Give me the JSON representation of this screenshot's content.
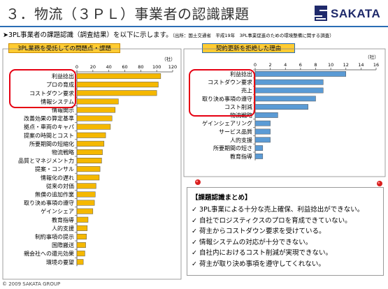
{
  "header": {
    "title": "３．物流（３ＰＬ）事業者の認識課題",
    "logo_text": "SAKATA"
  },
  "subtitle": {
    "text": "➤3PL事業者の課題認識（調査結果）を以下に示します。",
    "source": "（出所：国土交通省　平成19年　3PL事業促進のための環境整備に関する調査）"
  },
  "colors": {
    "left_bar": "#f5b800",
    "right_bar": "#5b9bd5",
    "highlight": "#e60012",
    "accent": "#2a6db5"
  },
  "chart_data": [
    {
      "type": "bar",
      "orientation": "horizontal",
      "title": "3PL業務を受託しての問題点・課題",
      "unit": "（社）",
      "xlim": [
        0,
        120
      ],
      "ticks": [
        0,
        20,
        40,
        60,
        80,
        100,
        120
      ],
      "categories": [
        "利益捻出",
        "プロの育成",
        "コストダウン要求",
        "情報システム",
        "情報開示",
        "改善効果の算定基準",
        "拠点・車両のキャパ",
        "提案の時間とコスト",
        "所要期間の短縮化",
        "物流戦略",
        "品質とマネジメント力",
        "提案・コンサル",
        "情報化の遅れ",
        "従来の対価",
        "無償の追加作業",
        "取り決め事項の遵守",
        "ゲインシェア",
        "教育指導",
        "人的支援",
        "制約事項の提示",
        "国際搬送",
        "親会社への還元効果",
        "環境の要望"
      ],
      "values": [
        105,
        102,
        100,
        52,
        48,
        44,
        42,
        36,
        34,
        32,
        31,
        29,
        28,
        24,
        23,
        22,
        20,
        14,
        13,
        12,
        11,
        10,
        8
      ]
    },
    {
      "type": "bar",
      "orientation": "horizontal",
      "title": "契約更新を拒絶した理由",
      "unit": "（社）",
      "xlim": [
        0,
        16
      ],
      "ticks": [
        0,
        2,
        4,
        6,
        8,
        10,
        12,
        14,
        16
      ],
      "categories": [
        "利益捻出",
        "コストダウン要求",
        "売上",
        "取り決め事項の遵守",
        "コスト削減",
        "物流戦略",
        "ゲインシェアリング",
        "サービス品質",
        "人的支援",
        "所要期間の短さ",
        "教育指導"
      ],
      "values": [
        12,
        9,
        9,
        8,
        7,
        3,
        2,
        2,
        2,
        1,
        1
      ]
    }
  ],
  "summary": {
    "title": "【課題認識まとめ】",
    "items": [
      "✓ 3PL事業による十分な売上確保、利益捻出ができない。",
      "✓ 自社でロジスティクスのプロを育成できていない。",
      "✓ 荷主からコストダウン要求を受けている。",
      "✓ 情報システムの対応が十分できない。",
      "✓ 自社内におけるコスト削減が実現できない。",
      "✓ 荷主が取り決め事項を遵守してくれない。"
    ]
  },
  "footer": {
    "copyright": "© 2009 SAKATA GROUP"
  }
}
